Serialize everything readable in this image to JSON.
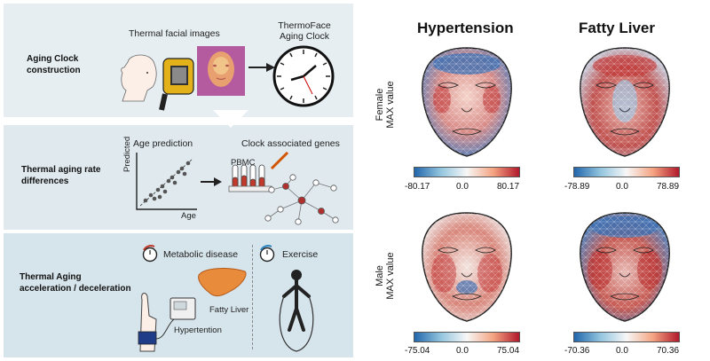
{
  "left": {
    "row1": {
      "label": "Aging Clock construction",
      "thermal_label": "Thermal facial images",
      "clock_label_line1": "ThermoFace",
      "clock_label_line2": "Aging Clock"
    },
    "row2": {
      "label_line1": "Thermal aging rate",
      "label_line2": "differences",
      "age_prediction": "Age prediction",
      "genes_label": "Clock associated genes",
      "y_axis": "Predicted",
      "x_axis": "Age",
      "pbmc": "PBMC"
    },
    "row3": {
      "label_line1": "Thermal Aging",
      "label_line2": "acceleration / deceleration",
      "metabolic": "Metabolic disease",
      "exercise": "Exercise",
      "fatty_liver": "Fatty Liver",
      "hypertension": "Hypertention"
    }
  },
  "right": {
    "col_headers": [
      "Hypertension",
      "Fatty Liver"
    ],
    "row_labels": [
      {
        "line1": "Female",
        "line2": "MAX value"
      },
      {
        "line1": "Male",
        "line2": "MAX value"
      }
    ],
    "colorbars": [
      {
        "min": "-80.17",
        "mid": "0.0",
        "max": "80.17"
      },
      {
        "min": "-78.89",
        "mid": "0.0",
        "max": "78.89"
      },
      {
        "min": "-75.04",
        "mid": "0.0",
        "max": "75.04"
      },
      {
        "min": "-70.36",
        "mid": "0.0",
        "max": "70.36"
      }
    ]
  },
  "colors": {
    "red": "#b2182b",
    "blue": "#2166ac",
    "neutral": "#f7f7f7",
    "panel_bg": "#e6eef2"
  }
}
